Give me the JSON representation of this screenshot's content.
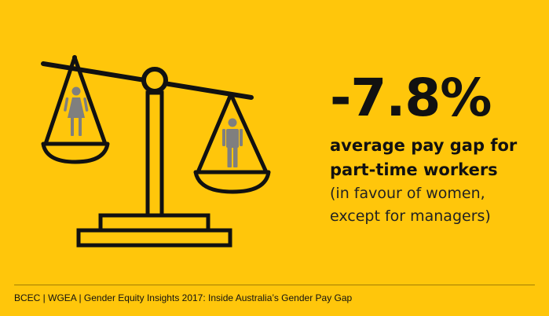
{
  "stat": {
    "value": "-7.8%"
  },
  "headline": {
    "line1": "average pay gap for",
    "line2": "part-time workers"
  },
  "subnote": {
    "line1": "(in favour of women,",
    "line2": "except for managers)"
  },
  "source": {
    "text": "BCEC | WGEA |  Gender Equity Insights 2017: Inside Australia’s Gender Pay Gap"
  },
  "icons": {
    "scale": "balance-scale-icon",
    "female": "female-figure-icon",
    "male": "male-figure-icon"
  },
  "colors": {
    "background": "#FFC60B",
    "ink": "#111111",
    "figure": "#7F7F7F"
  }
}
